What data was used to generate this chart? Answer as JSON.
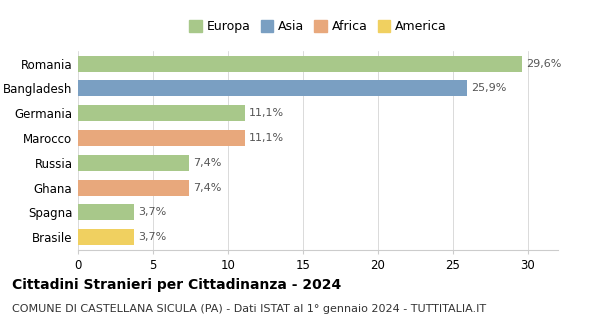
{
  "categories": [
    "Romania",
    "Bangladesh",
    "Germania",
    "Marocco",
    "Russia",
    "Ghana",
    "Spagna",
    "Brasile"
  ],
  "values": [
    29.6,
    25.9,
    11.1,
    11.1,
    7.4,
    7.4,
    3.7,
    3.7
  ],
  "labels": [
    "29,6%",
    "25,9%",
    "11,1%",
    "11,1%",
    "7,4%",
    "7,4%",
    "3,7%",
    "3,7%"
  ],
  "colors": [
    "#a8c88a",
    "#7a9fc2",
    "#a8c88a",
    "#e8a87c",
    "#a8c88a",
    "#e8a87c",
    "#a8c88a",
    "#f0d060"
  ],
  "legend_labels": [
    "Europa",
    "Asia",
    "Africa",
    "America"
  ],
  "legend_colors": [
    "#a8c88a",
    "#7a9fc2",
    "#e8a87c",
    "#f0d060"
  ],
  "title": "Cittadini Stranieri per Cittadinanza - 2024",
  "subtitle": "COMUNE DI CASTELLANA SICULA (PA) - Dati ISTAT al 1° gennaio 2024 - TUTTITALIA.IT",
  "xlim": [
    0,
    32
  ],
  "xticks": [
    0,
    5,
    10,
    15,
    20,
    25,
    30
  ],
  "background_color": "#ffffff",
  "title_fontsize": 10,
  "subtitle_fontsize": 8,
  "bar_label_fontsize": 8,
  "tick_label_fontsize": 8.5
}
